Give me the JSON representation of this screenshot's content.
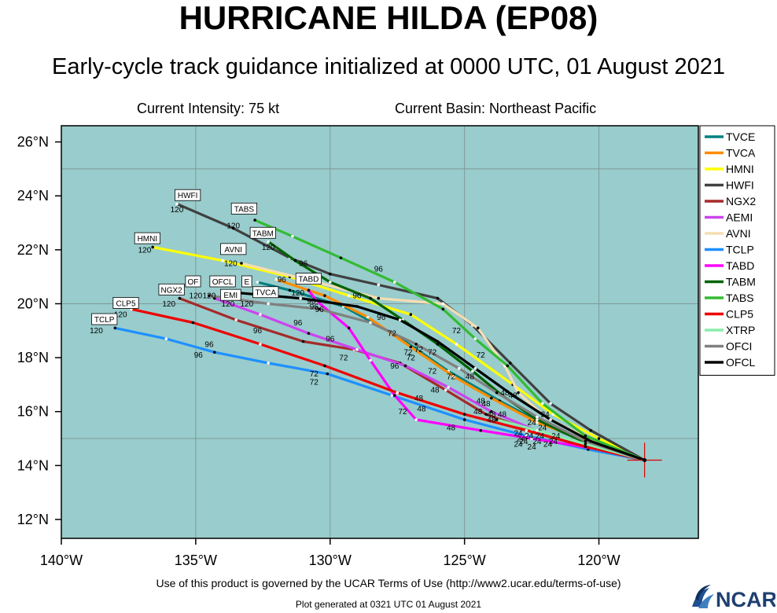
{
  "header": {
    "title": "HURRICANE HILDA (EP08)",
    "subtitle": "Early-cycle track guidance initialized at 0000 UTC, 01 August 2021",
    "intensity": "Current Intensity: 75 kt",
    "basin": "Current Basin: Northeast Pacific"
  },
  "footer": {
    "terms": "Use of this product is governed by the UCAR Terms of Use (http://www2.ucar.edu/terms-of-use)",
    "generated": "Plot generated at 0321 UTC   01 August 2021",
    "logo": "NCAR"
  },
  "colors": {
    "ocean": "#99cccc",
    "frame": "#000000",
    "grid": "#7f9999"
  },
  "chart_data": {
    "type": "line",
    "xlim": [
      -140.0,
      -116.3
    ],
    "ylim": [
      11.3,
      26.6
    ],
    "x_ticks": [
      {
        "lon": -140,
        "label": "140°W"
      },
      {
        "lon": -135,
        "label": "135°W"
      },
      {
        "lon": -130,
        "label": "130°W"
      },
      {
        "lon": -125,
        "label": "125°W"
      },
      {
        "lon": -120,
        "label": "120°W"
      }
    ],
    "y_ticks": [
      {
        "lat": 12,
        "label": "12°N"
      },
      {
        "lat": 14,
        "label": "14°N"
      },
      {
        "lat": 16,
        "label": "16°N"
      },
      {
        "lat": 18,
        "label": "18°N"
      },
      {
        "lat": 20,
        "label": "20°N"
      },
      {
        "lat": 22,
        "label": "22°N"
      },
      {
        "lat": 24,
        "label": "24°N"
      },
      {
        "lat": 26,
        "label": "26°N"
      }
    ],
    "grid_lons": [
      -140,
      -135,
      -130,
      -125,
      -120
    ],
    "grid_lats": [
      15,
      20,
      25
    ],
    "current_position": [
      -118.3,
      14.2
    ],
    "legend_position": "right",
    "series": [
      {
        "name": "TVCE",
        "color": "#008080",
        "points": [
          [
            -118.3,
            14.2
          ],
          [
            -120.3,
            14.8
          ],
          [
            -122.0,
            15.5
          ],
          [
            -123.7,
            16.4
          ],
          [
            -125.6,
            17.5
          ],
          [
            -127.5,
            18.8
          ],
          [
            -129.5,
            19.9
          ],
          [
            -131.5,
            20.5
          ],
          [
            -132.7,
            20.8
          ]
        ]
      },
      {
        "name": "TVCA",
        "color": "#ff8c00",
        "points": [
          [
            -118.3,
            14.2
          ],
          [
            -120.4,
            14.9
          ],
          [
            -122.3,
            15.6
          ],
          [
            -124.0,
            16.5
          ],
          [
            -125.4,
            17.3
          ],
          [
            -127.0,
            18.4
          ],
          [
            -128.6,
            19.5
          ],
          [
            -130.2,
            20.3
          ],
          [
            -132.0,
            20.9
          ]
        ]
      },
      {
        "name": "HMNI",
        "color": "#ffff00",
        "points": [
          [
            -118.3,
            14.2
          ],
          [
            -120.0,
            15.0
          ],
          [
            -121.7,
            15.9
          ],
          [
            -123.2,
            17.0
          ],
          [
            -125.3,
            18.5
          ],
          [
            -127.0,
            19.6
          ],
          [
            -129.3,
            20.3
          ],
          [
            -131.5,
            21.0
          ],
          [
            -134.0,
            21.6
          ],
          [
            -136.6,
            22.1
          ]
        ]
      },
      {
        "name": "HWFI",
        "color": "#404040",
        "points": [
          [
            -118.3,
            14.2
          ],
          [
            -120.3,
            15.3
          ],
          [
            -121.8,
            16.3
          ],
          [
            -123.3,
            17.8
          ],
          [
            -124.7,
            19.2
          ],
          [
            -126.0,
            20.2
          ],
          [
            -128.2,
            20.7
          ],
          [
            -130.0,
            21.1
          ],
          [
            -131.5,
            21.7
          ],
          [
            -133.6,
            22.8
          ],
          [
            -135.7,
            23.7
          ]
        ]
      },
      {
        "name": "NGX2",
        "color": "#a52a2a",
        "points": [
          [
            -118.3,
            14.2
          ],
          [
            -120.5,
            14.8
          ],
          [
            -122.5,
            15.3
          ],
          [
            -124.2,
            15.9
          ],
          [
            -125.7,
            16.8
          ],
          [
            -127.4,
            17.8
          ],
          [
            -129.1,
            18.3
          ],
          [
            -131.0,
            18.6
          ],
          [
            -133.5,
            19.4
          ],
          [
            -135.6,
            20.2
          ]
        ]
      },
      {
        "name": "AEMI",
        "color": "#cc44ee",
        "points": [
          [
            -118.3,
            14.2
          ],
          [
            -120.2,
            14.7
          ],
          [
            -122.1,
            15.2
          ],
          [
            -124.0,
            16.0
          ],
          [
            -125.6,
            16.9
          ],
          [
            -127.2,
            17.7
          ],
          [
            -129.0,
            18.3
          ],
          [
            -130.8,
            18.9
          ],
          [
            -132.6,
            19.6
          ],
          [
            -134.3,
            20.2
          ]
        ]
      },
      {
        "name": "AVNI",
        "color": "#f5deb3",
        "points": [
          [
            -118.3,
            14.2
          ],
          [
            -120.4,
            15.0
          ],
          [
            -122.0,
            15.8
          ],
          [
            -123.0,
            16.7
          ],
          [
            -123.5,
            17.7
          ],
          [
            -124.5,
            19.1
          ],
          [
            -125.8,
            20.0
          ],
          [
            -128.2,
            20.2
          ],
          [
            -130.5,
            20.8
          ],
          [
            -133.3,
            21.5
          ]
        ]
      },
      {
        "name": "TCLP",
        "color": "#1e90ff",
        "points": [
          [
            -118.3,
            14.2
          ],
          [
            -120.4,
            14.6
          ],
          [
            -122.7,
            15.1
          ],
          [
            -125.0,
            15.7
          ],
          [
            -127.7,
            16.6
          ],
          [
            -130.1,
            17.4
          ],
          [
            -132.3,
            17.8
          ],
          [
            -134.3,
            18.2
          ],
          [
            -136.1,
            18.7
          ],
          [
            -138.0,
            19.1
          ]
        ]
      },
      {
        "name": "TABD",
        "color": "#ff00ff",
        "points": [
          [
            -118.3,
            14.2
          ],
          [
            -120.0,
            14.6
          ],
          [
            -122.5,
            15.0
          ],
          [
            -124.4,
            15.3
          ],
          [
            -126.8,
            15.7
          ],
          [
            -127.6,
            16.6
          ],
          [
            -128.5,
            17.9
          ],
          [
            -129.3,
            19.1
          ],
          [
            -130.5,
            20.1
          ],
          [
            -130.8,
            20.5
          ]
        ]
      },
      {
        "name": "TABM",
        "color": "#006400",
        "points": [
          [
            -118.3,
            14.2
          ],
          [
            -120.4,
            14.8
          ],
          [
            -122.3,
            15.7
          ],
          [
            -123.6,
            16.6
          ],
          [
            -124.7,
            17.5
          ],
          [
            -126.0,
            18.5
          ],
          [
            -127.3,
            19.4
          ],
          [
            -128.5,
            20.2
          ],
          [
            -130.0,
            20.8
          ],
          [
            -131.3,
            21.6
          ],
          [
            -132.3,
            22.3
          ]
        ]
      },
      {
        "name": "TABS",
        "color": "#33bb33",
        "points": [
          [
            -118.3,
            14.2
          ],
          [
            -120.5,
            15.1
          ],
          [
            -122.1,
            16.3
          ],
          [
            -123.4,
            17.7
          ],
          [
            -124.6,
            18.7
          ],
          [
            -125.8,
            19.8
          ],
          [
            -127.6,
            20.8
          ],
          [
            -129.6,
            21.7
          ],
          [
            -131.4,
            22.5
          ],
          [
            -132.8,
            23.1
          ]
        ]
      },
      {
        "name": "CLP5",
        "color": "#ee0000",
        "points": [
          [
            -118.3,
            14.2
          ],
          [
            -120.5,
            14.7
          ],
          [
            -122.7,
            15.3
          ],
          [
            -125.0,
            15.9
          ],
          [
            -127.5,
            16.7
          ],
          [
            -130.2,
            17.7
          ],
          [
            -132.6,
            18.5
          ],
          [
            -135.1,
            19.3
          ],
          [
            -137.4,
            19.8
          ]
        ]
      },
      {
        "name": "XTRP",
        "color": "#88eeaa",
        "points": [
          [
            -118.3,
            14.2
          ],
          [
            -120.5,
            14.8
          ],
          [
            -122.3,
            15.3
          ],
          [
            -123.8,
            15.7
          ]
        ]
      },
      {
        "name": "OFCI",
        "color": "#808080",
        "points": [
          [
            -118.3,
            14.2
          ],
          [
            -120.5,
            14.9
          ],
          [
            -122.3,
            15.8
          ],
          [
            -123.8,
            16.7
          ],
          [
            -125.2,
            17.6
          ],
          [
            -126.8,
            18.5
          ],
          [
            -128.5,
            19.3
          ],
          [
            -130.4,
            19.8
          ],
          [
            -132.3,
            20.0
          ],
          [
            -134.5,
            20.3
          ]
        ]
      },
      {
        "name": "OFCL",
        "color": "#000000",
        "points": [
          [
            -118.3,
            14.2
          ],
          [
            -120.3,
            14.9
          ],
          [
            -121.8,
            15.7
          ],
          [
            -123.2,
            16.6
          ],
          [
            -124.6,
            17.6
          ],
          [
            -126.0,
            18.6
          ],
          [
            -127.4,
            19.4
          ],
          [
            -129.0,
            19.9
          ],
          [
            -131.1,
            20.2
          ],
          [
            -133.4,
            20.4
          ]
        ]
      }
    ],
    "hour_labels": [
      {
        "text": "120",
        "lon": -135.7,
        "lat": 23.4
      },
      {
        "text": "120",
        "lon": -133.6,
        "lat": 22.8
      },
      {
        "text": "120",
        "lon": -132.3,
        "lat": 22.0
      },
      {
        "text": "120",
        "lon": -136.9,
        "lat": 21.9
      },
      {
        "text": "120",
        "lon": -133.7,
        "lat": 21.4
      },
      {
        "text": "120",
        "lon": -135.0,
        "lat": 20.2
      },
      {
        "text": "120",
        "lon": -134.5,
        "lat": 20.2
      },
      {
        "text": "120",
        "lon": -133.8,
        "lat": 19.9
      },
      {
        "text": "120",
        "lon": -133.1,
        "lat": 19.9
      },
      {
        "text": "120",
        "lon": -131.2,
        "lat": 20.3
      },
      {
        "text": "120",
        "lon": -136.0,
        "lat": 19.9
      },
      {
        "text": "120",
        "lon": -137.8,
        "lat": 19.5
      },
      {
        "text": "120",
        "lon": -138.7,
        "lat": 18.9
      },
      {
        "text": "96",
        "lon": -131.0,
        "lat": 21.4
      },
      {
        "text": "96",
        "lon": -131.8,
        "lat": 20.8
      },
      {
        "text": "96",
        "lon": -128.2,
        "lat": 21.2
      },
      {
        "text": "96",
        "lon": -129.0,
        "lat": 20.2
      },
      {
        "text": "96",
        "lon": -130.7,
        "lat": 20.0
      },
      {
        "text": "96",
        "lon": -130.6,
        "lat": 19.8
      },
      {
        "text": "96",
        "lon": -130.4,
        "lat": 19.7
      },
      {
        "text": "96",
        "lon": -128.1,
        "lat": 19.4
      },
      {
        "text": "96",
        "lon": -131.2,
        "lat": 19.2
      },
      {
        "text": "96",
        "lon": -132.7,
        "lat": 18.9
      },
      {
        "text": "96",
        "lon": -130.0,
        "lat": 18.6
      },
      {
        "text": "96",
        "lon": -134.5,
        "lat": 18.4
      },
      {
        "text": "96",
        "lon": -134.9,
        "lat": 18.0
      },
      {
        "text": "96",
        "lon": -127.6,
        "lat": 17.6
      },
      {
        "text": "72",
        "lon": -125.3,
        "lat": 18.9
      },
      {
        "text": "72",
        "lon": -127.7,
        "lat": 18.8
      },
      {
        "text": "72",
        "lon": -126.7,
        "lat": 18.2
      },
      {
        "text": "72",
        "lon": -126.2,
        "lat": 18.1
      },
      {
        "text": "72",
        "lon": -124.4,
        "lat": 18.0
      },
      {
        "text": "72",
        "lon": -127.1,
        "lat": 18.1
      },
      {
        "text": "72",
        "lon": -129.5,
        "lat": 17.9
      },
      {
        "text": "72",
        "lon": -127.0,
        "lat": 17.9
      },
      {
        "text": "72",
        "lon": -126.2,
        "lat": 17.4
      },
      {
        "text": "72",
        "lon": -125.5,
        "lat": 17.2
      },
      {
        "text": "72",
        "lon": -130.6,
        "lat": 17.3
      },
      {
        "text": "72",
        "lon": -130.6,
        "lat": 17.0
      },
      {
        "text": "72",
        "lon": -127.3,
        "lat": 15.9
      },
      {
        "text": "48",
        "lon": -124.8,
        "lat": 17.2
      },
      {
        "text": "48",
        "lon": -126.1,
        "lat": 16.7
      },
      {
        "text": "48",
        "lon": -123.5,
        "lat": 16.6
      },
      {
        "text": "48",
        "lon": -123.2,
        "lat": 16.5
      },
      {
        "text": "48",
        "lon": -126.7,
        "lat": 16.4
      },
      {
        "text": "48",
        "lon": -126.6,
        "lat": 16.0
      },
      {
        "text": "48",
        "lon": -124.4,
        "lat": 16.3
      },
      {
        "text": "48",
        "lon": -124.2,
        "lat": 16.2
      },
      {
        "text": "48",
        "lon": -124.5,
        "lat": 15.9
      },
      {
        "text": "48",
        "lon": -124.0,
        "lat": 15.8
      },
      {
        "text": "48",
        "lon": -123.6,
        "lat": 15.8
      },
      {
        "text": "48",
        "lon": -124.0,
        "lat": 15.6
      },
      {
        "text": "48",
        "lon": -125.5,
        "lat": 15.3
      },
      {
        "text": "24",
        "lon": -122.0,
        "lat": 15.8
      },
      {
        "text": "24",
        "lon": -122.5,
        "lat": 15.5
      },
      {
        "text": "24",
        "lon": -122.1,
        "lat": 15.3
      },
      {
        "text": "24",
        "lon": -123.0,
        "lat": 15.1
      },
      {
        "text": "24",
        "lon": -122.6,
        "lat": 15.0
      },
      {
        "text": "24",
        "lon": -122.2,
        "lat": 15.0
      },
      {
        "text": "24",
        "lon": -121.6,
        "lat": 15.0
      },
      {
        "text": "24",
        "lon": -122.9,
        "lat": 14.9
      },
      {
        "text": "24",
        "lon": -122.8,
        "lat": 14.8
      },
      {
        "text": "24",
        "lon": -122.3,
        "lat": 14.8
      },
      {
        "text": "24",
        "lon": -121.7,
        "lat": 14.8
      },
      {
        "text": "24",
        "lon": -123.0,
        "lat": 14.7
      },
      {
        "text": "24",
        "lon": -122.5,
        "lat": 14.6
      },
      {
        "text": "24",
        "lon": -121.9,
        "lat": 14.7
      }
    ],
    "model_boxes": [
      {
        "text": "HWFI",
        "lon": -135.3,
        "lat": 24.0
      },
      {
        "text": "TABS",
        "lon": -133.2,
        "lat": 23.5
      },
      {
        "text": "TABM",
        "lon": -132.5,
        "lat": 22.6
      },
      {
        "text": "HMNI",
        "lon": -136.8,
        "lat": 22.4
      },
      {
        "text": "AVNI",
        "lon": -133.6,
        "lat": 22.0
      },
      {
        "text": "OF",
        "lon": -135.1,
        "lat": 20.8
      },
      {
        "text": "OFCL",
        "lon": -134.0,
        "lat": 20.8
      },
      {
        "text": "E",
        "lon": -133.1,
        "lat": 20.8
      },
      {
        "text": "TABD",
        "lon": -130.8,
        "lat": 20.9
      },
      {
        "text": "NGX2",
        "lon": -135.9,
        "lat": 20.5
      },
      {
        "text": "TVCA",
        "lon": -132.4,
        "lat": 20.4
      },
      {
        "text": "EMI",
        "lon": -133.7,
        "lat": 20.3
      },
      {
        "text": "CLP5",
        "lon": -137.6,
        "lat": 20.0
      },
      {
        "text": "TCLP",
        "lon": -138.4,
        "lat": 19.4
      }
    ]
  }
}
